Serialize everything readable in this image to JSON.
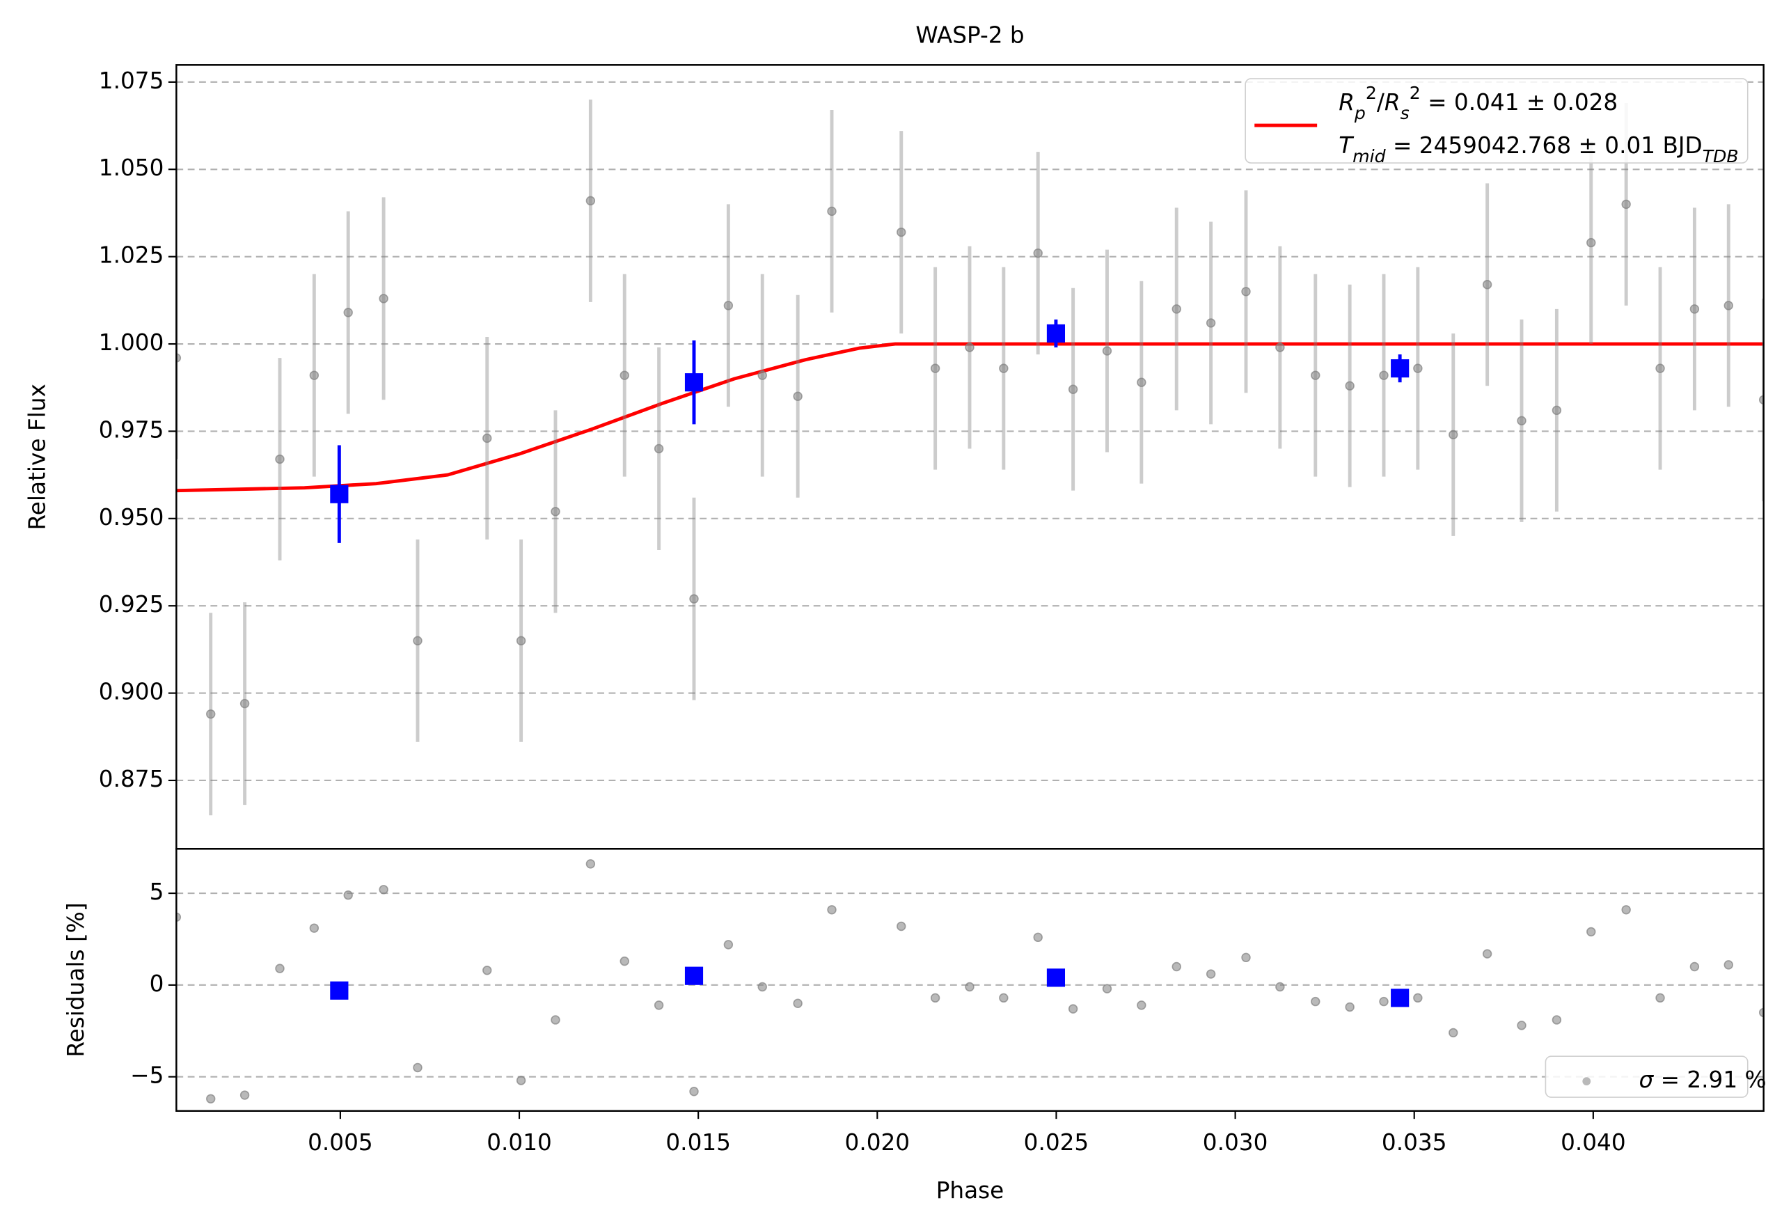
{
  "chart_data": [
    {
      "type": "scatter",
      "title": "WASP-2 b",
      "y_label": "Relative Flux",
      "xlim": [
        0.00042,
        0.04476
      ],
      "ylim": [
        0.8554,
        1.0799
      ],
      "yticks": [
        0.875,
        {
          "value": 0.9,
          "label": "0.900"
        },
        0.925,
        {
          "value": 0.95,
          "label": "0.950"
        },
        0.975,
        {
          "value": 1.0,
          "label": "1.000"
        },
        1.025,
        {
          "value": 1.05,
          "label": "1.050"
        },
        1.075
      ],
      "grid": true,
      "legend": "upper right",
      "series": [
        {
          "kind": "line",
          "color": "#ff0000",
          "name": [
            [
              {
                "text": "R",
                "style": "italic"
              },
              {
                "text": "p",
                "style": "sub-italic"
              },
              {
                "text": "2",
                "style": "sup"
              },
              {
                "text": "/",
                "style": "normal"
              },
              {
                "text": "R",
                "style": "italic"
              },
              {
                "text": "s",
                "style": "sub-italic"
              },
              {
                "text": "2",
                "style": "sup"
              },
              {
                "text": " = 0.041 ± 0.028",
                "style": "normal"
              }
            ],
            [
              {
                "text": "T",
                "style": "italic"
              },
              {
                "text": "mid",
                "style": "sub-italic"
              },
              {
                "text": " = 2459042.768 ± 0.01 BJD",
                "style": "normal"
              },
              {
                "text": "TDB",
                "style": "sub-italic"
              }
            ]
          ],
          "x": [
            0.00042,
            0.004,
            0.006,
            0.008,
            0.01,
            0.012,
            0.014,
            0.016,
            0.018,
            0.0195,
            0.0205,
            0.04476
          ],
          "values": [
            0.958,
            0.9588,
            0.96,
            0.9625,
            0.9685,
            0.9755,
            0.983,
            0.99,
            0.9955,
            0.9988,
            1.0,
            1.0
          ]
        },
        {
          "kind": "points",
          "color": "#808080",
          "error": 0.029,
          "x": [
            0.00042,
            0.00138,
            0.00233,
            0.00331,
            0.00427,
            0.00522,
            0.00621,
            0.00716,
            0.0091,
            0.01005,
            0.01101,
            0.01199,
            0.01294,
            0.0139,
            0.01488,
            0.01584,
            0.01679,
            0.01778,
            0.01873,
            0.02067,
            0.02162,
            0.02258,
            0.02353,
            0.02449,
            0.02547,
            0.02642,
            0.02738,
            0.02836,
            0.02932,
            0.0303,
            0.03125,
            0.03224,
            0.0332,
            0.03415,
            0.0351,
            0.03609,
            0.03704,
            0.038,
            0.03898,
            0.03994,
            0.04092,
            0.04187,
            0.04283,
            0.04378,
            0.04476
          ],
          "values": [
            0.996,
            0.894,
            0.897,
            0.967,
            0.991,
            1.009,
            1.013,
            0.915,
            0.973,
            0.915,
            0.952,
            1.041,
            0.991,
            0.97,
            0.927,
            1.011,
            0.991,
            0.985,
            1.038,
            1.032,
            0.993,
            0.999,
            0.993,
            1.026,
            0.987,
            0.998,
            0.989,
            1.01,
            1.006,
            1.015,
            0.999,
            0.991,
            0.988,
            0.991,
            0.993,
            0.974,
            1.017,
            0.978,
            0.981,
            1.029,
            1.04,
            0.993,
            1.01,
            1.011,
            0.984
          ]
        },
        {
          "kind": "binned",
          "color": "#0000ff",
          "x": [
            0.00497,
            0.01488,
            0.02499,
            0.0346
          ],
          "values": [
            0.957,
            0.989,
            1.003,
            0.993
          ],
          "errors": [
            0.014,
            0.012,
            0.004,
            0.004
          ]
        }
      ]
    },
    {
      "type": "scatter",
      "y_label": "Residuals [%]",
      "x_label": "Phase",
      "xlim": [
        0.00042,
        0.04476
      ],
      "ylim": [
        -6.86,
        7.42
      ],
      "xticks": [
        0.005,
        {
          "value": 0.01,
          "label": "0.010"
        },
        0.015,
        {
          "value": 0.02,
          "label": "0.020"
        },
        0.025,
        {
          "value": 0.03,
          "label": "0.030"
        },
        0.035,
        {
          "value": 0.04,
          "label": "0.040"
        }
      ],
      "yticks": [
        {
          "value": -5,
          "label": "−5"
        },
        0,
        5
      ],
      "grid": true,
      "legend": "lower right",
      "series": [
        {
          "kind": "points",
          "color": "#808080",
          "name": [
            {
              "text": "σ",
              "style": "italic"
            },
            {
              "text": " = 2.91 %",
              "style": "normal"
            }
          ],
          "x": [
            0.00042,
            0.00138,
            0.00233,
            0.00331,
            0.00427,
            0.00522,
            0.00621,
            0.00716,
            0.0091,
            0.01005,
            0.01101,
            0.01199,
            0.01294,
            0.0139,
            0.01488,
            0.01584,
            0.01679,
            0.01778,
            0.01873,
            0.02067,
            0.02162,
            0.02258,
            0.02353,
            0.02449,
            0.02547,
            0.02642,
            0.02738,
            0.02836,
            0.02932,
            0.0303,
            0.03125,
            0.03224,
            0.0332,
            0.03415,
            0.0351,
            0.03609,
            0.03704,
            0.038,
            0.03898,
            0.03994,
            0.04092,
            0.04187,
            0.04283,
            0.04378,
            0.04476
          ],
          "values": [
            3.7,
            -6.2,
            -6.0,
            0.9,
            3.1,
            4.9,
            5.2,
            -4.5,
            0.8,
            -5.2,
            -1.9,
            6.6,
            1.3,
            -1.1,
            -5.8,
            2.2,
            -0.1,
            -1.0,
            4.1,
            3.2,
            -0.7,
            -0.1,
            -0.7,
            2.6,
            -1.3,
            -0.2,
            -1.1,
            1.0,
            0.6,
            1.5,
            -0.1,
            -0.9,
            -1.2,
            -0.9,
            -0.7,
            -2.6,
            1.7,
            -2.2,
            -1.9,
            2.9,
            4.1,
            -0.7,
            1.0,
            1.1,
            -1.5
          ]
        },
        {
          "kind": "binned",
          "color": "#0000ff",
          "x": [
            0.00497,
            0.01488,
            0.02499,
            0.0346
          ],
          "values": [
            -0.3,
            0.5,
            0.4,
            -0.7
          ]
        }
      ]
    }
  ]
}
